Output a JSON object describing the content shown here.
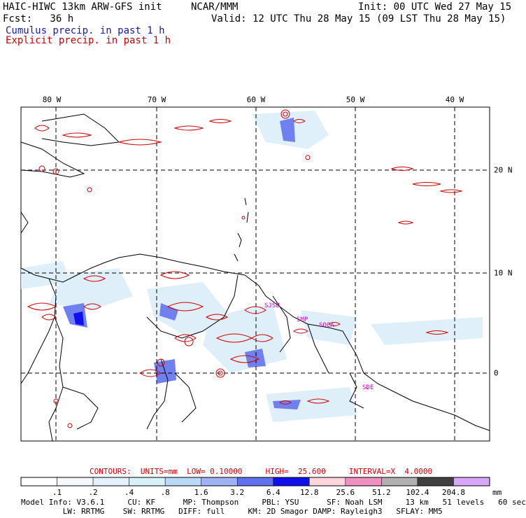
{
  "header": {
    "model_title": "HAIC-HIWC 13km ARW-GFS init",
    "org": "NCAR/MMM",
    "init": "Init: 00 UTC Wed 27 May 15",
    "fcst": "Fcst:   36 h",
    "valid": "Valid: 12 UTC Thu 28 May 15 (09 LST Thu 28 May 15)",
    "cumulus_label": "Cumulus precip. in past 1 h",
    "explicit_label": "Explicit precip. in past 1 h",
    "cumulus_color": "#1a1aa0",
    "explicit_color": "#d00000"
  },
  "axes": {
    "longitudes": [
      "80 W",
      "70 W",
      "60 W",
      "50 W",
      "40 W"
    ],
    "latitudes": [
      "20 N",
      "10 N",
      "0"
    ]
  },
  "cities": [
    "SJSU",
    "SMP",
    "SOCA",
    "SDE"
  ],
  "contours": {
    "label": "CONTOURS:  UNITS=mm  LOW= 0.10000     HIGH=  25.600     INTERVAL=X  4.0000"
  },
  "colorbar": {
    "ticks": [
      ".1",
      ".2",
      ".4",
      ".8",
      "1.6",
      "3.2",
      "6.4",
      "12.8",
      "25.6",
      "51.2",
      "102.4",
      "204.8"
    ],
    "unit": "mm",
    "colors": [
      "#ffffff",
      "#f4f8fc",
      "#e6f0fa",
      "#d8f0f8",
      "#bcd8f8",
      "#a0b0f4",
      "#6070ee",
      "#1010ee",
      "#fcd4dc",
      "#f090c0",
      "#b0b0b0",
      "#404040",
      "#d8a8f8"
    ]
  },
  "footer": {
    "line1": "Model Info: V3.6.1     CU: KF      MP: Thompson     PBL: YSU      SF: Noah LSM     13 km   51 levels   60 sec",
    "line2": "         LW: RRTMG    SW: RRTMG   DIFF: full     KM: 2D Smagor DAMP: Rayleigh3   SFLAY: MM5"
  }
}
